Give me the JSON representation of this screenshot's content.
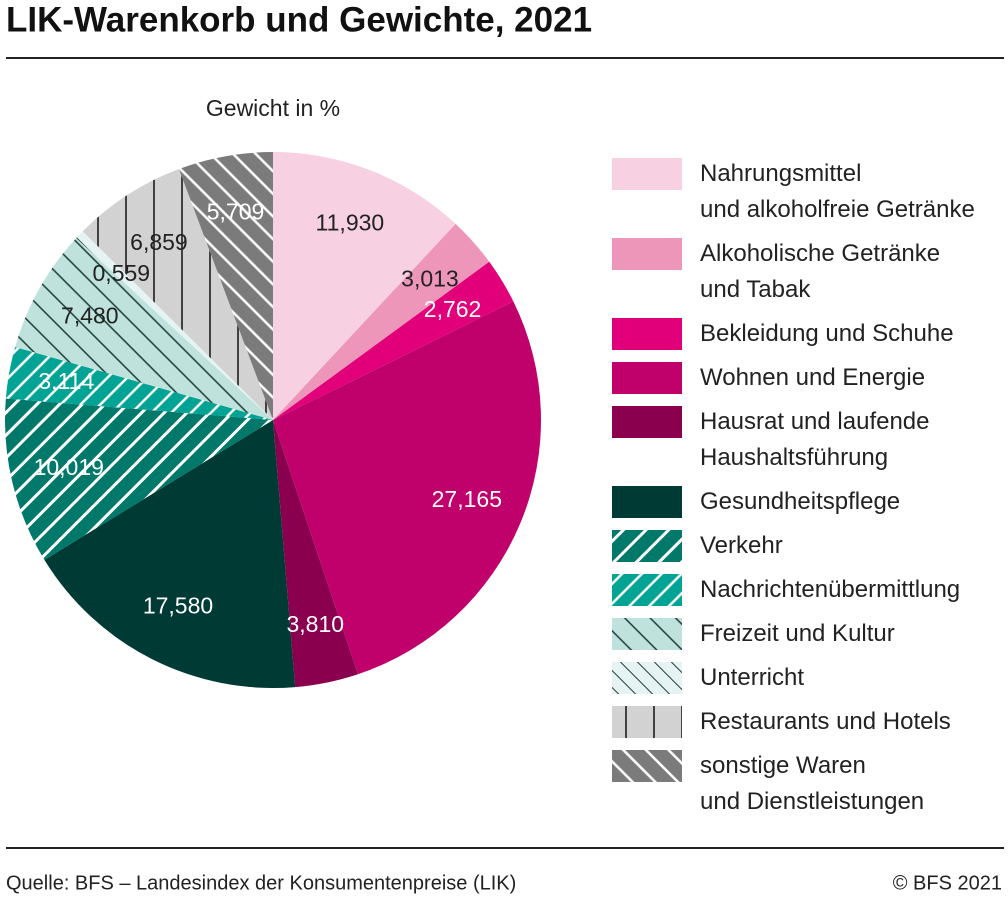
{
  "chart_data": {
    "type": "pie",
    "title": "LIK-Warenkorb und Gewichte, 2021",
    "subtitle": "Gewicht in %",
    "categories": [
      "Nahrungsmittel\nund alkoholfreie Getränke",
      "Alkoholische Getränke\nund Tabak",
      "Bekleidung und Schuhe",
      "Wohnen und Energie",
      "Hausrat und laufende\nHaushaltsführung",
      "Gesundheitspflege",
      "Verkehr",
      "Nachrichtenübermittlung",
      "Freizeit und Kultur",
      "Unterricht",
      "Restaurants und Hotels",
      "sonstige Waren\nund Dienstleistungen"
    ],
    "values": [
      11.93,
      3.013,
      2.762,
      27.165,
      3.81,
      17.58,
      10.019,
      3.114,
      7.48,
      0.559,
      6.859,
      5.709
    ],
    "value_labels": [
      "11,930",
      "3,013",
      "2,762",
      "27,165",
      "3,810",
      "17,580",
      "10,019",
      "3,114",
      "7,480",
      "0,559",
      "6,859",
      "5,709"
    ],
    "colors": [
      "#f7d0e1",
      "#ee96ba",
      "#e2007a",
      "#c0006b",
      "#8a004f",
      "#003a34",
      "#00786a",
      "#00a394",
      "#bfe3dc",
      "#e5f4f2",
      "#d2d2d2",
      "#7b7b7b"
    ],
    "source": "Quelle: BFS – Landesindex der Konsumentenpreise (LIK)",
    "credit": "© BFS 2021"
  }
}
